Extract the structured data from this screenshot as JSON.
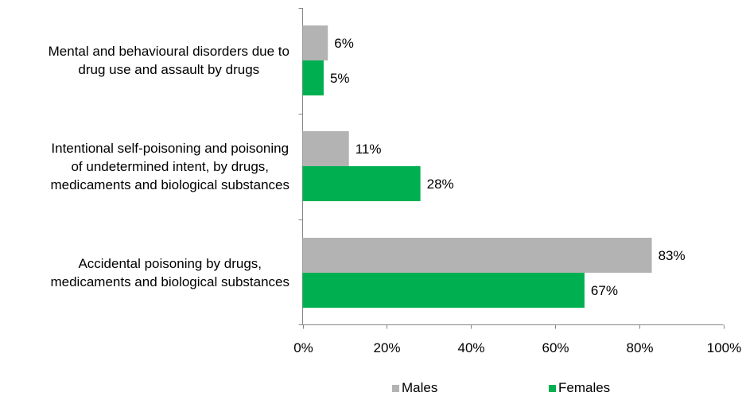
{
  "chart_data": {
    "type": "bar",
    "orientation": "horizontal",
    "categories": [
      "Mental and behavioural disorders due to\ndrug use and assault by drugs",
      "Intentional self-poisoning and poisoning\nof undetermined intent, by drugs,\nmedicaments and biological substances",
      "Accidental poisoning by drugs,\nmedicaments and biological substances"
    ],
    "series": [
      {
        "name": "Males",
        "color": "#b3b3b3",
        "values": [
          6,
          11,
          83
        ],
        "labels": [
          "6%",
          "11%",
          "83%"
        ]
      },
      {
        "name": "Females",
        "color": "#00b050",
        "values": [
          5,
          28,
          67
        ],
        "labels": [
          "5%",
          "28%",
          "67%"
        ]
      }
    ],
    "xlim": [
      0,
      100
    ],
    "x_ticks": [
      "0%",
      "20%",
      "40%",
      "60%",
      "80%",
      "100%"
    ],
    "grid": false,
    "legend": "bottom"
  }
}
